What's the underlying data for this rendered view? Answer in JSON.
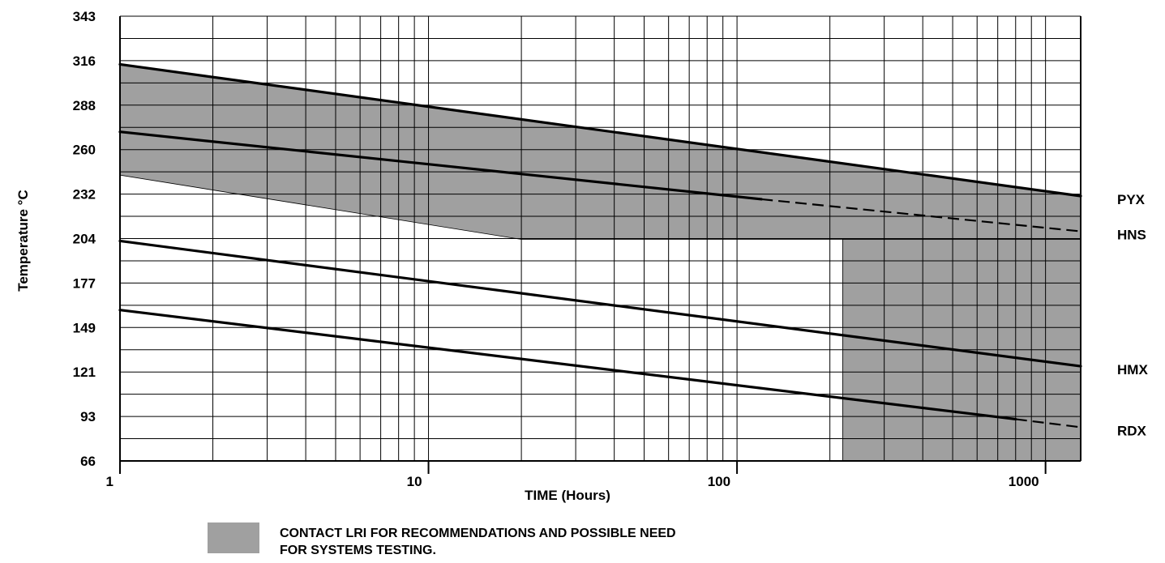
{
  "chart_data": {
    "type": "line",
    "xlabel": "TIME (Hours)",
    "ylabel": "Temperature °C",
    "x_scale": "log",
    "xlim": [
      1,
      1300
    ],
    "ylim": [
      66,
      343
    ],
    "x_ticks": [
      "1",
      "10",
      "100",
      "1000"
    ],
    "y_ticks": [
      "343",
      "316",
      "288",
      "260",
      "232",
      "204",
      "177",
      "149",
      "121",
      "93",
      "66"
    ],
    "grid": true,
    "series": [
      {
        "name": "PYX",
        "color": "#000000",
        "style": "solid",
        "x": [
          1,
          1300
        ],
        "y": [
          313,
          231
        ]
      },
      {
        "name": "HNS",
        "color": "#000000",
        "style": "solid",
        "x": [
          1,
          120
        ],
        "y": [
          271,
          229
        ],
        "dashed_extension": {
          "x": [
            120,
            1300
          ],
          "y": [
            229,
            209
          ]
        }
      },
      {
        "name": "HMX",
        "color": "#000000",
        "style": "solid",
        "x": [
          1,
          1300
        ],
        "y": [
          203,
          125
        ]
      },
      {
        "name": "RDX",
        "color": "#000000",
        "style": "solid",
        "x": [
          1,
          800
        ],
        "y": [
          160,
          92
        ],
        "dashed_extension": {
          "x": [
            800,
            1300
          ],
          "y": [
            92,
            87
          ]
        }
      }
    ],
    "shaded_regions": [
      {
        "color": "#a0a0a0",
        "polygon": [
          [
            1,
            313
          ],
          [
            1300,
            231
          ],
          [
            1300,
            204
          ],
          [
            20,
            204
          ],
          [
            1,
            244
          ]
        ]
      },
      {
        "color": "#a0a0a0",
        "polygon": [
          [
            220,
            204
          ],
          [
            1300,
            204
          ],
          [
            1300,
            66
          ],
          [
            220,
            66
          ]
        ]
      }
    ],
    "legend": {
      "swatch_color": "#a0a0a0",
      "lines": [
        "CONTACT LRI FOR RECOMMENDATIONS AND POSSIBLE NEED",
        "FOR SYSTEMS TESTING."
      ]
    }
  }
}
